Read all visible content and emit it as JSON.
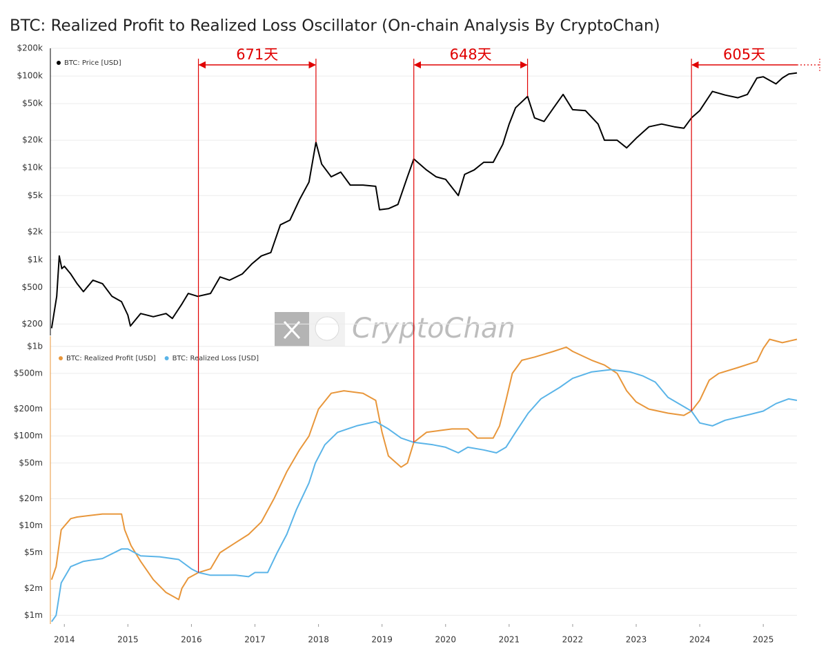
{
  "chart_data": [
    {
      "type": "line",
      "title": "BTC: Realized Profit to Realized Loss Oscillator (On-chain Analysis By CryptoChan)",
      "watermark": "CryptoChan",
      "log_y": true,
      "xlim": [
        2013.78,
        2025.53
      ],
      "ylim": [
        150,
        200000
      ],
      "yticks": [
        {
          "value": 200000,
          "label": "$200k"
        },
        {
          "value": 100000,
          "label": "$100k"
        },
        {
          "value": 50000,
          "label": "$50k"
        },
        {
          "value": 20000,
          "label": "$20k"
        },
        {
          "value": 10000,
          "label": "$10k"
        },
        {
          "value": 5000,
          "label": "$5k"
        },
        {
          "value": 2000,
          "label": "$2k"
        },
        {
          "value": 1000,
          "label": "$1k"
        },
        {
          "value": 500,
          "label": "$500"
        },
        {
          "value": 200,
          "label": "$200"
        }
      ],
      "grid": true,
      "x": [
        2013.8,
        2013.88,
        2013.92,
        2013.96,
        2014.0,
        2014.1,
        2014.2,
        2014.3,
        2014.45,
        2014.6,
        2014.75,
        2014.9,
        2015.0,
        2015.04,
        2015.2,
        2015.4,
        2015.6,
        2015.7,
        2015.85,
        2015.95,
        2016.1,
        2016.3,
        2016.45,
        2016.6,
        2016.8,
        2016.95,
        2017.1,
        2017.25,
        2017.4,
        2017.55,
        2017.7,
        2017.85,
        2017.96,
        2018.05,
        2018.2,
        2018.35,
        2018.5,
        2018.7,
        2018.9,
        2018.96,
        2019.1,
        2019.25,
        2019.4,
        2019.5,
        2019.7,
        2019.85,
        2020.0,
        2020.2,
        2020.3,
        2020.45,
        2020.6,
        2020.75,
        2020.9,
        2021.0,
        2021.1,
        2021.29,
        2021.4,
        2021.55,
        2021.7,
        2021.85,
        2022.0,
        2022.2,
        2022.4,
        2022.5,
        2022.7,
        2022.85,
        2023.0,
        2023.2,
        2023.4,
        2023.6,
        2023.75,
        2023.87,
        2024.0,
        2024.2,
        2024.4,
        2024.6,
        2024.75,
        2024.9,
        2025.0,
        2025.2,
        2025.3,
        2025.4,
        2025.53
      ],
      "series": [
        {
          "name": "BTC: Price [USD]",
          "color": "#000000",
          "values": [
            180,
            400,
            1100,
            800,
            850,
            700,
            550,
            450,
            600,
            550,
            400,
            350,
            250,
            190,
            260,
            240,
            260,
            230,
            330,
            430,
            400,
            430,
            650,
            600,
            700,
            900,
            1100,
            1200,
            2400,
            2700,
            4500,
            7000,
            19000,
            11000,
            8000,
            9000,
            6500,
            6500,
            6300,
            3500,
            3600,
            4000,
            8000,
            12500,
            9500,
            8000,
            7500,
            5000,
            8500,
            9500,
            11500,
            11500,
            18000,
            30000,
            45000,
            60000,
            35000,
            32000,
            45000,
            63000,
            43000,
            42000,
            30000,
            20000,
            20000,
            16500,
            21000,
            28000,
            30000,
            28000,
            27000,
            35000,
            42000,
            68000,
            62000,
            58000,
            63000,
            95000,
            98000,
            82000,
            95000,
            105000,
            108000
          ]
        }
      ],
      "annotations": [
        {
          "label": "671天",
          "start": 2016.11,
          "end": 2017.96
        },
        {
          "label": "648天",
          "start": 2019.5,
          "end": 2021.29
        },
        {
          "label": "605天",
          "start": 2023.87,
          "end": 2025.53
        }
      ]
    },
    {
      "type": "line",
      "log_y": true,
      "xlim": [
        2013.78,
        2025.53
      ],
      "xticks": [
        2014,
        2015,
        2016,
        2017,
        2018,
        2019,
        2020,
        2021,
        2022,
        2023,
        2024,
        2025
      ],
      "ylim": [
        800000,
        1300000000
      ],
      "yticks": [
        {
          "value": 1000000000,
          "label": "$1b"
        },
        {
          "value": 500000000,
          "label": "$500m"
        },
        {
          "value": 200000000,
          "label": "$200m"
        },
        {
          "value": 100000000,
          "label": "$100m"
        },
        {
          "value": 50000000,
          "label": "$50m"
        },
        {
          "value": 20000000,
          "label": "$20m"
        },
        {
          "value": 10000000,
          "label": "$10m"
        },
        {
          "value": 5000000,
          "label": "$5m"
        },
        {
          "value": 2000000,
          "label": "$2m"
        },
        {
          "value": 1000000,
          "label": "$1m"
        }
      ],
      "grid": true,
      "series": [
        {
          "name": "BTC: Realized Profit [USD]",
          "color": "#e8963a",
          "x": [
            2013.8,
            2013.87,
            2013.95,
            2014.1,
            2014.2,
            2014.4,
            2014.6,
            2014.9,
            2014.95,
            2015.05,
            2015.2,
            2015.4,
            2015.6,
            2015.8,
            2015.85,
            2015.95,
            2016.11,
            2016.3,
            2016.45,
            2016.7,
            2016.9,
            2017.1,
            2017.3,
            2017.5,
            2017.7,
            2017.85,
            2018.0,
            2018.2,
            2018.4,
            2018.7,
            2018.9,
            2019.0,
            2019.1,
            2019.3,
            2019.4,
            2019.5,
            2019.7,
            2019.9,
            2020.1,
            2020.35,
            2020.5,
            2020.75,
            2020.85,
            2020.95,
            2021.05,
            2021.2,
            2021.4,
            2021.7,
            2021.9,
            2022.0,
            2022.3,
            2022.5,
            2022.7,
            2022.85,
            2023.0,
            2023.2,
            2023.5,
            2023.75,
            2023.87,
            2024.0,
            2024.15,
            2024.3,
            2024.6,
            2024.9,
            2025.0,
            2025.1,
            2025.3,
            2025.53
          ],
          "values": [
            2500000,
            3500000,
            9000000,
            12000000,
            12500000,
            13000000,
            13500000,
            13500000,
            9000000,
            6000000,
            4000000,
            2500000,
            1800000,
            1500000,
            2000000,
            2600000,
            3000000,
            3300000,
            5000000,
            6500000,
            8000000,
            11000000,
            20000000,
            40000000,
            70000000,
            100000000,
            200000000,
            300000000,
            320000000,
            300000000,
            250000000,
            110000000,
            60000000,
            45000000,
            50000000,
            85000000,
            110000000,
            115000000,
            120000000,
            120000000,
            95000000,
            95000000,
            130000000,
            250000000,
            500000000,
            700000000,
            760000000,
            880000000,
            980000000,
            880000000,
            700000000,
            620000000,
            500000000,
            320000000,
            240000000,
            200000000,
            180000000,
            170000000,
            190000000,
            250000000,
            420000000,
            500000000,
            580000000,
            680000000,
            950000000,
            1200000000,
            1100000000,
            1200000000
          ]
        },
        {
          "name": "BTC: Realized Loss [USD]",
          "color": "#5ab4e8",
          "x": [
            2013.8,
            2013.87,
            2013.95,
            2014.1,
            2014.3,
            2014.6,
            2014.9,
            2015.0,
            2015.2,
            2015.5,
            2015.8,
            2016.0,
            2016.11,
            2016.3,
            2016.5,
            2016.7,
            2016.9,
            2017.0,
            2017.2,
            2017.35,
            2017.5,
            2017.65,
            2017.85,
            2017.95,
            2018.1,
            2018.3,
            2018.6,
            2018.9,
            2019.1,
            2019.3,
            2019.5,
            2019.8,
            2020.0,
            2020.2,
            2020.35,
            2020.6,
            2020.8,
            2020.95,
            2021.1,
            2021.3,
            2021.5,
            2021.8,
            2022.0,
            2022.3,
            2022.6,
            2022.9,
            2023.1,
            2023.3,
            2023.5,
            2023.87,
            2024.0,
            2024.2,
            2024.4,
            2024.8,
            2025.0,
            2025.2,
            2025.4,
            2025.53
          ],
          "values": [
            850000,
            1000000,
            2300000,
            3500000,
            4000000,
            4300000,
            5500000,
            5500000,
            4600000,
            4500000,
            4200000,
            3300000,
            3000000,
            2800000,
            2800000,
            2800000,
            2700000,
            3000000,
            3000000,
            5000000,
            8000000,
            15000000,
            30000000,
            50000000,
            80000000,
            110000000,
            130000000,
            145000000,
            120000000,
            95000000,
            85000000,
            80000000,
            75000000,
            65000000,
            75000000,
            70000000,
            65000000,
            75000000,
            110000000,
            180000000,
            260000000,
            350000000,
            440000000,
            520000000,
            550000000,
            520000000,
            470000000,
            400000000,
            270000000,
            190000000,
            140000000,
            130000000,
            150000000,
            175000000,
            190000000,
            230000000,
            260000000,
            250000000
          ]
        }
      ]
    }
  ]
}
